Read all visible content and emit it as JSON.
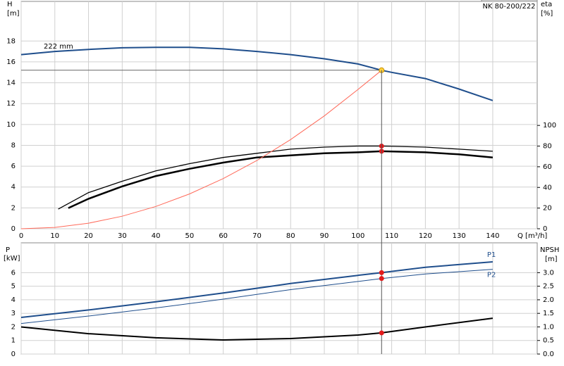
{
  "chart_data": [
    {
      "type": "line",
      "title": "NK 80-200/222",
      "annotation": "222 mm",
      "ylabel": "H",
      "yunit": "[m]",
      "y2label": "eta",
      "y2unit": "[%]",
      "xlabel": "Q [m³/h]",
      "xlim": [
        0,
        153.2
      ],
      "xticks": [
        0,
        10,
        20,
        30,
        40,
        50,
        60,
        70,
        80,
        90,
        100,
        110,
        120,
        130,
        140
      ],
      "ylim": [
        0,
        21.8
      ],
      "yticks": [
        0,
        2,
        4,
        6,
        8,
        10,
        12,
        14,
        16,
        18
      ],
      "y2lim": [
        0,
        220
      ],
      "y2ticks": [
        0,
        20,
        40,
        60,
        80,
        100
      ],
      "grid": true,
      "duty_x": 107,
      "series": [
        {
          "color": "#1f4e8c",
          "width": 2,
          "marker": "#ffd23f",
          "x": [
            0,
            10,
            20,
            30,
            40,
            50,
            60,
            70,
            80,
            90,
            100,
            107,
            110,
            120,
            130,
            140
          ],
          "values": [
            16.7,
            17.0,
            17.2,
            17.35,
            17.4,
            17.4,
            17.25,
            17.0,
            16.7,
            16.3,
            15.8,
            15.2,
            15.0,
            14.4,
            13.4,
            12.3
          ]
        },
        {
          "color": "#000000",
          "width": 1.3,
          "axis": "y2",
          "marker": "#e31a1c",
          "x": [
            11,
            20,
            30,
            40,
            50,
            60,
            70,
            80,
            90,
            100,
            107,
            120,
            130,
            140
          ],
          "values": [
            19,
            35,
            46,
            56,
            63,
            69,
            73,
            77,
            79,
            80,
            80,
            79,
            77,
            75
          ]
        },
        {
          "color": "#000000",
          "width": 2.5,
          "axis": "y2",
          "marker": "#e31a1c",
          "x": [
            14,
            20,
            30,
            40,
            50,
            60,
            70,
            80,
            90,
            100,
            107,
            120,
            130,
            140
          ],
          "values": [
            20,
            29,
            41,
            51,
            58,
            64,
            69,
            71,
            73,
            74,
            75,
            74,
            72,
            69
          ]
        },
        {
          "color": "#ff6a5a",
          "width": 1,
          "x": [
            0,
            10,
            20,
            30,
            40,
            50,
            60,
            70,
            80,
            90,
            100,
            107
          ],
          "values": [
            0,
            0.13,
            0.53,
            1.2,
            2.14,
            3.34,
            4.81,
            6.55,
            8.55,
            10.82,
            13.36,
            15.2
          ]
        }
      ]
    },
    {
      "type": "line",
      "ylabel": "P",
      "yunit": "[kW]",
      "y2label": "NPSH",
      "y2unit": "[m]",
      "xlim": [
        0,
        153.2
      ],
      "xticks": [
        0,
        10,
        20,
        30,
        40,
        50,
        60,
        70,
        80,
        90,
        100,
        110,
        120,
        130,
        140
      ],
      "ylim": [
        0,
        8.2
      ],
      "yticks": [
        0,
        1,
        2,
        3,
        4,
        5,
        6
      ],
      "y2lim": [
        0,
        4.1
      ],
      "y2ticks": [
        {
          "value": 0,
          "label": "0.0"
        },
        {
          "value": 0.5,
          "label": "0.5"
        },
        {
          "value": 1,
          "label": "1.0"
        },
        {
          "value": 1.5,
          "label": "1.5"
        },
        {
          "value": 2,
          "label": "2.0"
        },
        {
          "value": 2.5,
          "label": "2.5"
        },
        {
          "value": 3,
          "label": "3.0"
        }
      ],
      "grid": true,
      "duty_x": 107,
      "series": [
        {
          "name": "P1",
          "color": "#1f4e8c",
          "width": 2,
          "marker": "#e31a1c",
          "x": [
            0,
            20,
            40,
            60,
            80,
            100,
            107,
            120,
            140
          ],
          "values": [
            2.7,
            3.25,
            3.85,
            4.5,
            5.2,
            5.8,
            6.0,
            6.4,
            6.8
          ]
        },
        {
          "name": "P2",
          "color": "#1f4e8c",
          "width": 1,
          "marker": "#e31a1c",
          "x": [
            0,
            20,
            40,
            60,
            80,
            100,
            107,
            120,
            140
          ],
          "values": [
            2.25,
            2.8,
            3.4,
            4.05,
            4.75,
            5.35,
            5.57,
            5.9,
            6.25
          ]
        },
        {
          "color": "#000000",
          "width": 2,
          "axis": "y2",
          "marker": "#e31a1c",
          "x": [
            0,
            20,
            40,
            60,
            80,
            100,
            107,
            120,
            140
          ],
          "values": [
            1.0,
            0.75,
            0.6,
            0.52,
            0.57,
            0.7,
            0.78,
            1.0,
            1.32
          ]
        }
      ]
    }
  ]
}
